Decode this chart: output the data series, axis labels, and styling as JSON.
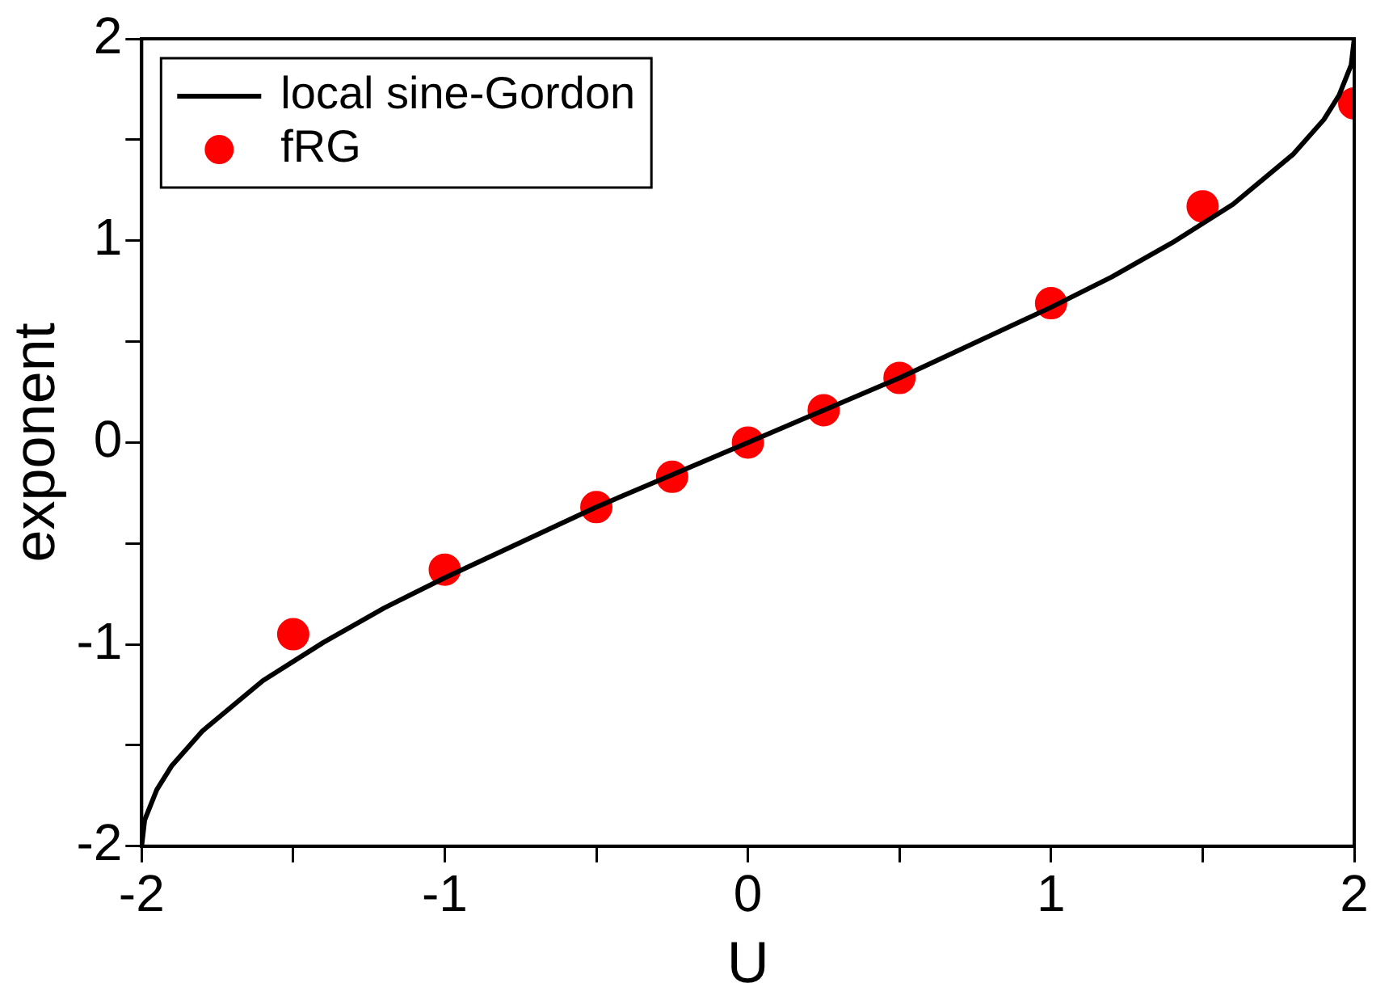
{
  "chart_data": {
    "type": "line",
    "xlabel": "U",
    "ylabel": "exponent",
    "xlim": [
      -2,
      2
    ],
    "ylim": [
      -2,
      2
    ],
    "xticks": [
      -2,
      {
        "value": -1.5,
        "label": null
      },
      -1,
      {
        "value": -0.5,
        "label": null
      },
      0,
      {
        "value": 0.5,
        "label": null
      },
      1,
      {
        "value": 1.5,
        "label": null
      },
      2
    ],
    "yticks": [
      -2,
      {
        "value": -1.5,
        "label": null
      },
      -1,
      {
        "value": -0.5,
        "label": null
      },
      0,
      {
        "value": 0.5,
        "label": null
      },
      1,
      {
        "value": 1.5,
        "label": null
      },
      2
    ],
    "legend": "top left",
    "series": [
      {
        "name": "local sine-Gordon",
        "color": "#000000",
        "marker": "none",
        "line_style": "solid",
        "x": [
          -2,
          -1.99,
          -1.95,
          -1.9,
          -1.8,
          -1.6,
          -1.4,
          -1.2,
          -1,
          -0.5,
          0,
          0.5,
          1,
          1.2,
          1.4,
          1.6,
          1.8,
          1.9,
          1.95,
          1.99,
          2
        ],
        "values": [
          -2,
          -1.87,
          -1.72,
          -1.6,
          -1.43,
          -1.18,
          -0.99,
          -0.82,
          -0.67,
          -0.32,
          0,
          0.32,
          0.67,
          0.82,
          0.99,
          1.18,
          1.43,
          1.6,
          1.72,
          1.87,
          2
        ]
      },
      {
        "name": "fRG",
        "type": "scatter",
        "color": "#ff0000",
        "marker": "circle",
        "x": [
          -1.5,
          -1,
          -0.5,
          -0.25,
          0,
          0.25,
          0.5,
          1,
          1.5,
          2
        ],
        "values": [
          -0.95,
          -0.63,
          -0.32,
          -0.17,
          0,
          0.16,
          0.32,
          0.69,
          1.17,
          1.68
        ]
      }
    ]
  }
}
